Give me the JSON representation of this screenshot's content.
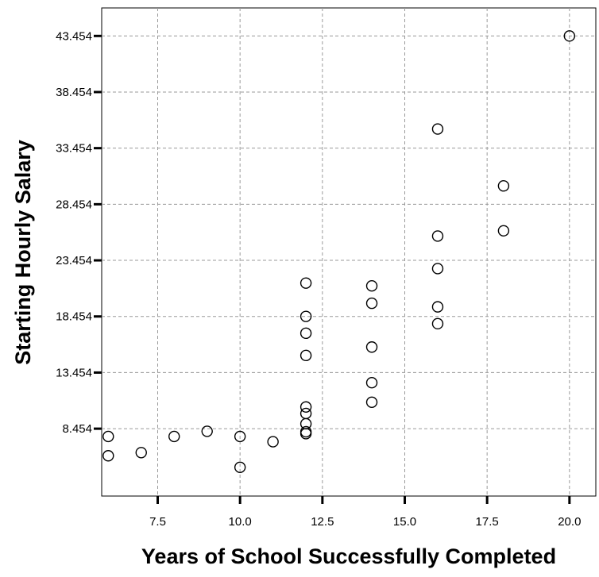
{
  "chart_data": {
    "type": "scatter",
    "title": "",
    "xlabel": "Years of School Successfully Completed",
    "ylabel": "Starting Hourly Salary",
    "xlim": [
      5.8,
      20.8
    ],
    "ylim": [
      2.45,
      45.95
    ],
    "x_ticks": [
      {
        "value": 7.5,
        "label": "7.5"
      },
      {
        "value": 10.0,
        "label": "10.0"
      },
      {
        "value": 12.5,
        "label": "12.5"
      },
      {
        "value": 15.0,
        "label": "15.0"
      },
      {
        "value": 17.5,
        "label": "17.5"
      },
      {
        "value": 20.0,
        "label": "20.0"
      }
    ],
    "y_ticks": [
      {
        "value": 8.454,
        "label": "8.454"
      },
      {
        "value": 13.454,
        "label": "13.454"
      },
      {
        "value": 18.454,
        "label": "18.454"
      },
      {
        "value": 23.454,
        "label": "23.454"
      },
      {
        "value": 28.454,
        "label": "28.454"
      },
      {
        "value": 33.454,
        "label": "33.454"
      },
      {
        "value": 38.454,
        "label": "38.454"
      },
      {
        "value": 43.454,
        "label": "43.454"
      }
    ],
    "grid": true,
    "points": [
      {
        "x": 6,
        "y": 7.76
      },
      {
        "x": 6,
        "y": 6.04
      },
      {
        "x": 7,
        "y": 6.32
      },
      {
        "x": 8,
        "y": 7.76
      },
      {
        "x": 9,
        "y": 8.22
      },
      {
        "x": 10,
        "y": 7.76
      },
      {
        "x": 10,
        "y": 5.01
      },
      {
        "x": 11,
        "y": 7.29
      },
      {
        "x": 12,
        "y": 21.43
      },
      {
        "x": 12,
        "y": 18.46
      },
      {
        "x": 12,
        "y": 16.96
      },
      {
        "x": 12,
        "y": 14.98
      },
      {
        "x": 12,
        "y": 10.39
      },
      {
        "x": 12,
        "y": 9.81
      },
      {
        "x": 12,
        "y": 8.89
      },
      {
        "x": 12,
        "y": 8.18
      },
      {
        "x": 12,
        "y": 8.01
      },
      {
        "x": 14,
        "y": 21.18
      },
      {
        "x": 14,
        "y": 19.63
      },
      {
        "x": 14,
        "y": 15.73
      },
      {
        "x": 14,
        "y": 12.55
      },
      {
        "x": 14,
        "y": 10.81
      },
      {
        "x": 16,
        "y": 35.16
      },
      {
        "x": 16,
        "y": 25.62
      },
      {
        "x": 16,
        "y": 22.72
      },
      {
        "x": 16,
        "y": 19.31
      },
      {
        "x": 16,
        "y": 17.81
      },
      {
        "x": 18,
        "y": 30.09
      },
      {
        "x": 18,
        "y": 26.09
      },
      {
        "x": 20,
        "y": 43.45
      }
    ]
  }
}
